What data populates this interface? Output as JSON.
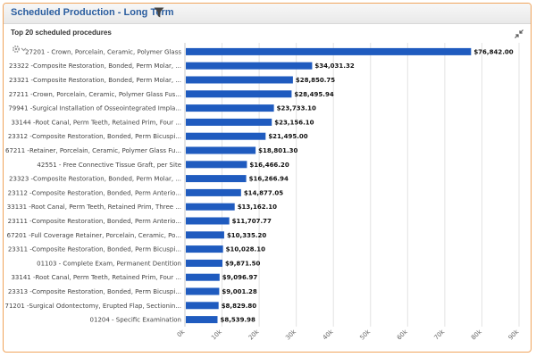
{
  "panel": {
    "title": "Scheduled Production - Long Term",
    "subtitle": "Top 20 scheduled procedures",
    "filter_icon": "filter-icon",
    "expand_icon": "collapse-arrows-icon",
    "settings_icon": "gear-icon"
  },
  "colors": {
    "bar": "#1f5bbf",
    "accent_border": "#f0a45c",
    "title": "#2a5d9f"
  },
  "chart_data": {
    "type": "bar",
    "orientation": "horizontal",
    "categories": [
      "27201 - Crown, Porcelain, Ceramic, Polymer Glass",
      "23322 -Composite Restoration, Bonded, Perm Molar, ...",
      "23321 -Composite Restoration, Bonded, Perm Molar, ...",
      "27211 -Crown, Porcelain, Ceramic, Polymer Glass Fus...",
      "79941 -Surgical Installation of Osseointegrated Impla...",
      "33144 -Root Canal, Perm Teeth, Retained Prim, Four ...",
      "23312 -Composite Restoration, Bonded, Perm Bicuspi...",
      "67211 -Retainer, Porcelain, Ceramic, Polymer Glass Fu...",
      "42551 - Free Connective Tissue Graft, per Site",
      "23323 -Composite Restoration, Bonded, Perm Molar, ...",
      "23112 -Composite Restoration, Bonded, Perm Anterio...",
      "33131 -Root Canal, Perm Teeth, Retained Prim, Three ...",
      "23111 -Composite Restoration, Bonded, Perm Anterio...",
      "67201 -Full Coverage Retainer, Porcelain, Ceramic, Po...",
      "23311 -Composite Restoration, Bonded, Perm Bicuspi...",
      "01103 - Complete Exam, Permanent Dentition",
      "33141 -Root Canal, Perm Teeth, Retained Prim, Four ...",
      "23313 -Composite Restoration, Bonded, Perm Bicuspi...",
      "71201 -Surgical Odontectomy, Erupted Flap, Sectionin...",
      "01204 - Specific Examination"
    ],
    "values": [
      76842.0,
      34031.32,
      28850.75,
      28495.94,
      23733.1,
      23156.1,
      21495.0,
      18801.3,
      16466.2,
      16266.94,
      14877.05,
      13162.1,
      11707.77,
      10335.2,
      10028.1,
      9871.5,
      9096.97,
      9001.28,
      8829.8,
      8539.98
    ],
    "value_labels": [
      "$76,842.00",
      "$34,031.32",
      "$28,850.75",
      "$28,495.94",
      "$23,733.10",
      "$23,156.10",
      "$21,495.00",
      "$18,801.30",
      "$16,466.20",
      "$16,266.94",
      "$14,877.05",
      "$13,162.10",
      "$11,707.77",
      "$10,335.20",
      "$10,028.10",
      "$9,871.50",
      "$9,096.97",
      "$9,001.28",
      "$8,829.80",
      "$8,539.98"
    ],
    "xlim": [
      0,
      90000
    ],
    "xticks": [
      0,
      10000,
      20000,
      30000,
      40000,
      50000,
      60000,
      70000,
      80000,
      90000
    ],
    "xtick_labels": [
      "0k",
      "10k",
      "20k",
      "30k",
      "40k",
      "50k",
      "60k",
      "70k",
      "80k",
      "90k"
    ],
    "grid": true,
    "legend": "none",
    "title": "",
    "xlabel": "",
    "ylabel": ""
  }
}
